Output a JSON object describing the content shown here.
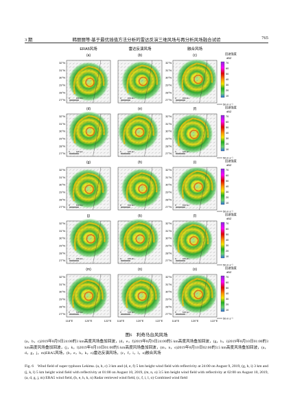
{
  "header": {
    "left": "3 期",
    "center": "韩丽丽等:基于最优插值方法分析的雷达反演三维风场与再分析风场融合试验",
    "right": "765"
  },
  "figure": {
    "columns": [
      "ERA5风场",
      "雷达反演风场",
      "融合风场"
    ],
    "panels": [
      "(a)",
      "(b)",
      "(c)",
      "(d)",
      "(e)",
      "(f)",
      "(g)",
      "(h)",
      "(i)",
      "(j)",
      "(k)",
      "(l)",
      "(m)",
      "(n)",
      "(o)"
    ],
    "lat_labels": [
      "32°N",
      "31°N",
      "30°N",
      "29°N",
      "28°N",
      "27°N"
    ],
    "lon_labels": [
      "118°E",
      "120°E",
      "122°E"
    ],
    "scale_bar": [
      "0",
      "100 km"
    ],
    "colorbar": {
      "title": "回波强度",
      "unit": "dBZ",
      "ticks": [
        70,
        60,
        50,
        40,
        30,
        20,
        10
      ]
    },
    "vector_scale": "50 m s⁻¹"
  },
  "caption": {
    "title": "图6　利奇马台风风场",
    "zh": "(a，b，c)2019年8月9日24:00的3 km高度风场叠加回波，(d，e，f)2019年8月9日24:00的5 km高度风场叠加回波，(g，h，i)2019年8月10日01:00的3 km高度风场叠加回波，(j，k，l)2019年8月10日01:00的5 km高度风场叠加回波，(m，n，o)2019年8月10日02:00的3.5 km高度风场叠加回波，(a，d，g，j，m)ERA5风场，(b，e，h，k，n)雷达反演风场，(c，f，i，l，o)融合风场",
    "en": "Fig. 6　Wind field of super typhoon Lekima. (a, b, c) 3 km and (d, e, f) 5 km height wind field with reflectivity at 24:00 on August 9, 2019, (g, h, i) 3 km and (j, k, l) 5 km height wind field with reflectivity at 01:00 on August 10, 2019, (m, n, o) 3.5 km height wind field with reflectivity at 02:00 on August 10, 2019, (a, d, g, j, m) ERA5 wind field, (b, e, h, k, n) Radar retrieved wind field, (c, f, i, l, o) Combined wind field"
  }
}
